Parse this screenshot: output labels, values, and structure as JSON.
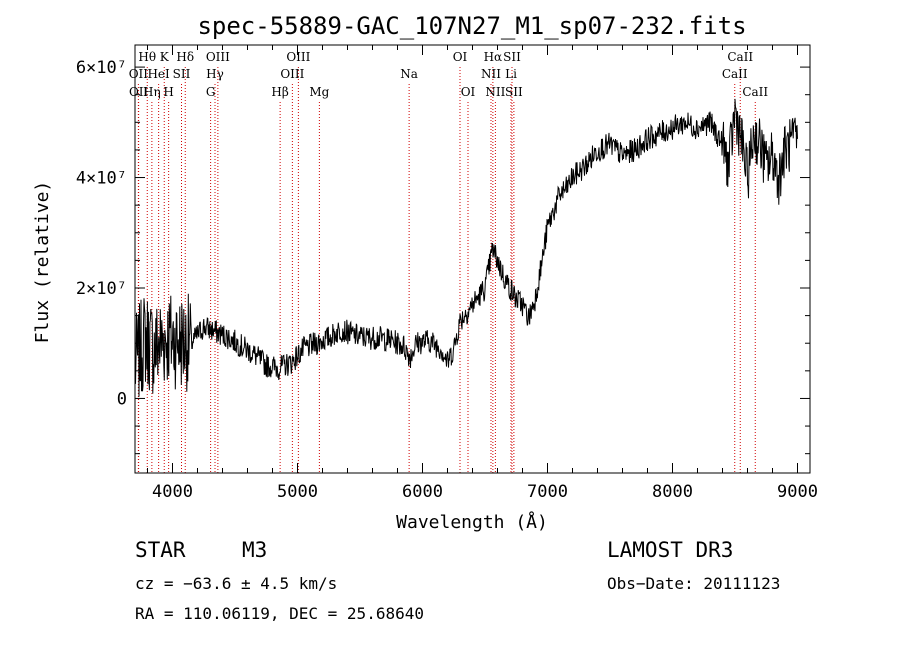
{
  "chart_data": {
    "type": "line",
    "title": "spec-55889-GAC_107N27_M1_sp07-232.fits",
    "xlabel": "Wavelength (Å)",
    "ylabel": "Flux (relative)",
    "xlim": [
      3700,
      9100
    ],
    "ylim": [
      -13500000,
      64000000
    ],
    "x_ticks": [
      4000,
      5000,
      6000,
      7000,
      8000,
      9000
    ],
    "x_tick_labels": [
      "4000",
      "5000",
      "6000",
      "7000",
      "8000",
      "9000"
    ],
    "y_ticks": [
      0,
      20000000,
      40000000,
      60000000
    ],
    "y_tick_labels": [
      "0",
      "2×10⁷",
      "4×10⁷",
      "6×10⁷"
    ],
    "series": [
      {
        "name": "flux",
        "x": [
          3700,
          3780,
          3850,
          3950,
          4050,
          4150,
          4250,
          4350,
          4450,
          4550,
          4650,
          4750,
          4850,
          4950,
          5050,
          5150,
          5250,
          5350,
          5450,
          5550,
          5650,
          5750,
          5850,
          5900,
          5950,
          6050,
          6150,
          6200,
          6250,
          6300,
          6400,
          6500,
          6560,
          6600,
          6650,
          6700,
          6750,
          6800,
          6850,
          6900,
          6950,
          7000,
          7050,
          7100,
          7150,
          7200,
          7300,
          7400,
          7500,
          7600,
          7700,
          7800,
          7900,
          8000,
          8100,
          8200,
          8300,
          8400,
          8450,
          8500,
          8550,
          8600,
          8650,
          8700,
          8750,
          8800,
          8850,
          8900,
          8950,
          9000
        ],
        "y": [
          6000000,
          11000000,
          9000000,
          11000000,
          10500000,
          10000000,
          13000000,
          12000000,
          11000000,
          9500000,
          8000000,
          6000000,
          5500000,
          6500000,
          9000000,
          10000000,
          11000000,
          12500000,
          11500000,
          11000000,
          11000000,
          10500000,
          9500000,
          7500000,
          10000000,
          10500000,
          9000000,
          6500000,
          9000000,
          14000000,
          17000000,
          20000000,
          27000000,
          25000000,
          22000000,
          20000000,
          18000000,
          17000000,
          14500000,
          18000000,
          24000000,
          31000000,
          34000000,
          37000000,
          38000000,
          40000000,
          42000000,
          45000000,
          46000000,
          44000000,
          45000000,
          47000000,
          48000000,
          49000000,
          50000000,
          49000000,
          50000000,
          46000000,
          42000000,
          52000000,
          47000000,
          40000000,
          48000000,
          46000000,
          42000000,
          44000000,
          40000000,
          45000000,
          46000000,
          47000000
        ]
      }
    ],
    "line_labels": [
      {
        "label": "Hθ",
        "wavelength": 3798,
        "row": 0
      },
      {
        "label": "OII",
        "wavelength": 3727,
        "row": 1
      },
      {
        "label": "OII",
        "wavelength": 3729,
        "row": 2
      },
      {
        "label": "K",
        "wavelength": 3934,
        "row": 0
      },
      {
        "label": "HeI",
        "wavelength": 3889,
        "row": 1
      },
      {
        "label": "Hη",
        "wavelength": 3835,
        "row": 2
      },
      {
        "label": "H",
        "wavelength": 3969,
        "row": 2
      },
      {
        "label": "SII",
        "wavelength": 4072,
        "row": 1
      },
      {
        "label": "Hδ",
        "wavelength": 4102,
        "row": 0
      },
      {
        "label": "OIII",
        "wavelength": 4363,
        "row": 0
      },
      {
        "label": "Hγ",
        "wavelength": 4340,
        "row": 1
      },
      {
        "label": "G",
        "wavelength": 4305,
        "row": 2
      },
      {
        "label": "Hβ",
        "wavelength": 4861,
        "row": 2
      },
      {
        "label": "OIII",
        "wavelength": 5007,
        "row": 0
      },
      {
        "label": "OIII",
        "wavelength": 4959,
        "row": 1
      },
      {
        "label": "Mg",
        "wavelength": 5175,
        "row": 2
      },
      {
        "label": "Na",
        "wavelength": 5893,
        "row": 1
      },
      {
        "label": "OI",
        "wavelength": 6300,
        "row": 0
      },
      {
        "label": "OI",
        "wavelength": 6364,
        "row": 2
      },
      {
        "label": "Hα",
        "wavelength": 6563,
        "row": 0
      },
      {
        "label": "SII",
        "wavelength": 6716,
        "row": 0
      },
      {
        "label": "NII",
        "wavelength": 6548,
        "row": 1
      },
      {
        "label": "Li",
        "wavelength": 6708,
        "row": 1
      },
      {
        "label": "NII",
        "wavelength": 6583,
        "row": 2
      },
      {
        "label": "SII",
        "wavelength": 6731,
        "row": 2
      },
      {
        "label": "CaII",
        "wavelength": 8542,
        "row": 0
      },
      {
        "label": "CaII",
        "wavelength": 8498,
        "row": 1
      },
      {
        "label": "CaII",
        "wavelength": 8662,
        "row": 2
      }
    ]
  },
  "info": {
    "object_type": "STAR",
    "subclass": "M3",
    "survey": "LAMOST DR3",
    "cz": "cz = −63.6 ± 4.5 km/s",
    "obs_date": "Obs−Date: 20111123",
    "coords": "RA = 110.06119, DEC =  25.68640"
  }
}
